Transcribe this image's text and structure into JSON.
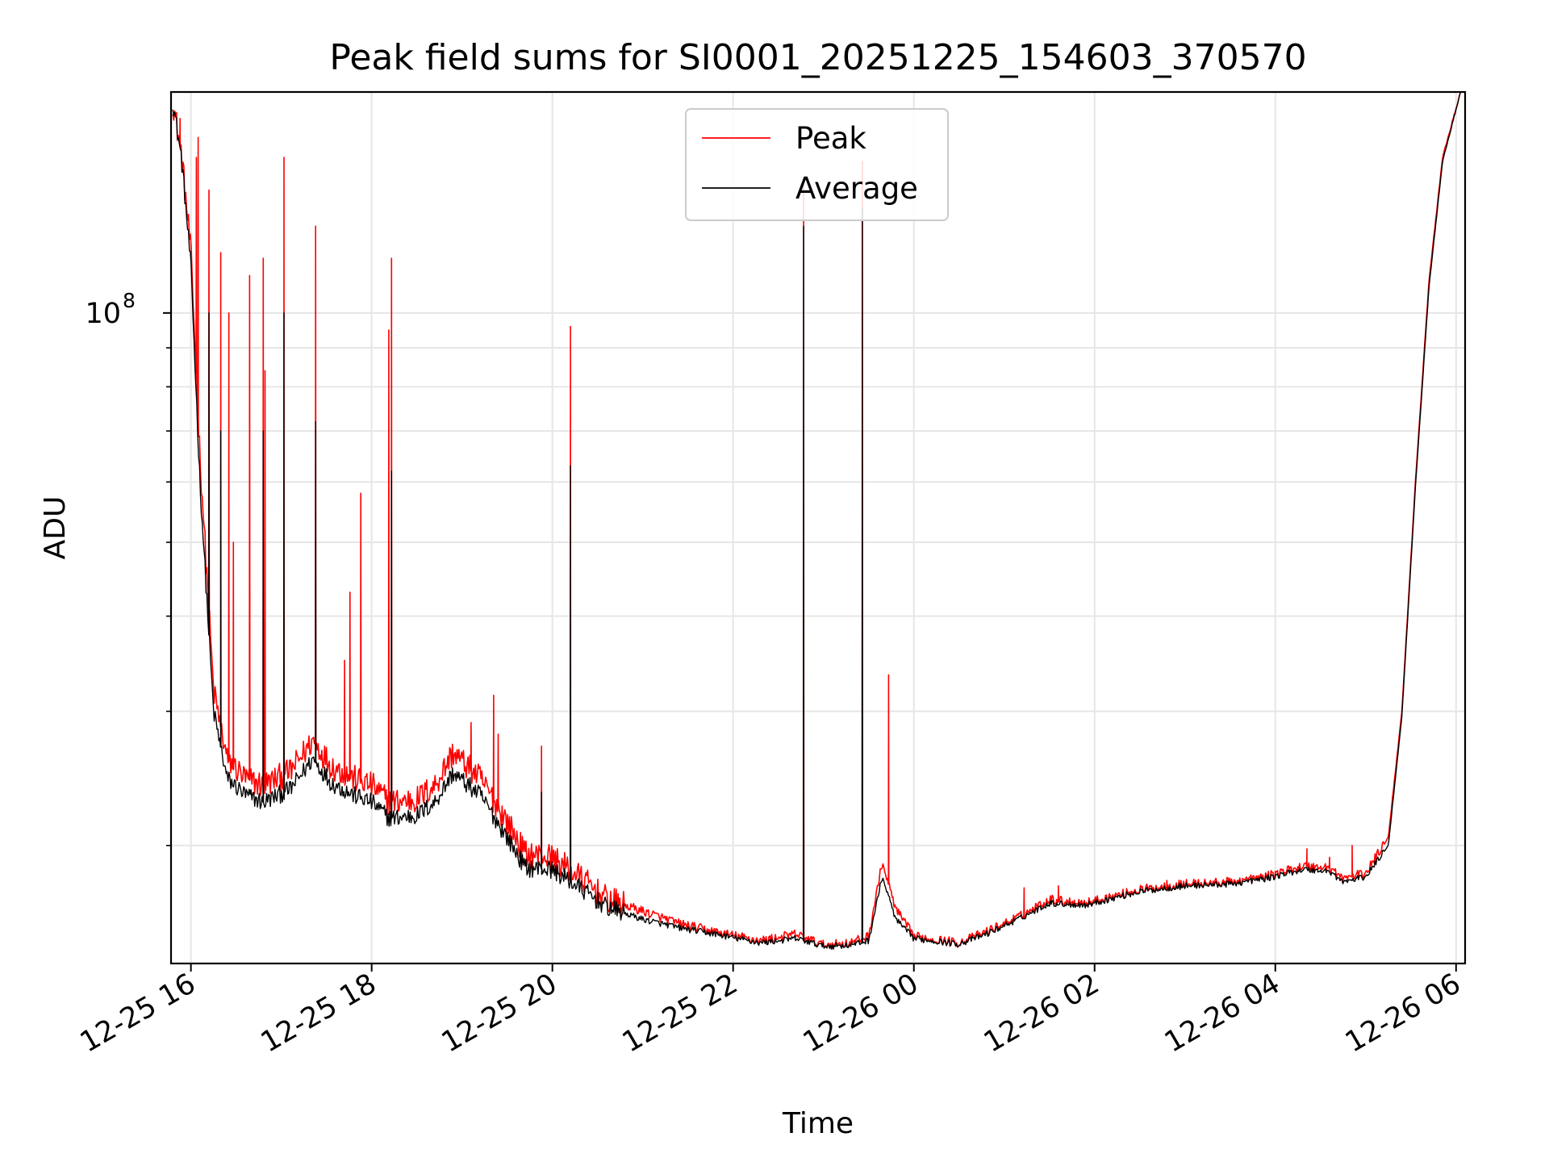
{
  "chart_data": {
    "type": "line",
    "title": "Peak field sums for SI0001_20251225_154603_370570",
    "xlabel": "Time",
    "ylabel": "ADU",
    "yscale": "log",
    "ylim": [
      14000000,
      195000000
    ],
    "xlim_hours": [
      15.78,
      30.1
    ],
    "grid": true,
    "legend_position": "top-center",
    "x_ticks": [
      {
        "hour": 16,
        "label": "12-25 16"
      },
      {
        "hour": 18,
        "label": "12-25 18"
      },
      {
        "hour": 20,
        "label": "12-25 20"
      },
      {
        "hour": 22,
        "label": "12-25 22"
      },
      {
        "hour": 24,
        "label": "12-26 00"
      },
      {
        "hour": 26,
        "label": "12-26 02"
      },
      {
        "hour": 28,
        "label": "12-26 04"
      },
      {
        "hour": 30,
        "label": "12-26 06"
      }
    ],
    "y_major_tick": {
      "value": 100000000,
      "base": "10",
      "exp": "8"
    },
    "y_minor_ticks": [
      20000000,
      30000000,
      40000000,
      50000000,
      60000000,
      70000000,
      80000000,
      90000000,
      200000000
    ],
    "series": [
      {
        "name": "Peak",
        "color": "#ff0000",
        "baseline": [
          [
            15.8,
            190000000
          ],
          [
            15.9,
            160000000
          ],
          [
            16.0,
            120000000
          ],
          [
            16.1,
            65000000
          ],
          [
            16.25,
            32000000
          ],
          [
            16.4,
            26000000
          ],
          [
            16.6,
            24500000
          ],
          [
            16.8,
            24000000
          ],
          [
            17.1,
            25000000
          ],
          [
            17.35,
            27500000
          ],
          [
            17.55,
            25500000
          ],
          [
            17.8,
            24500000
          ],
          [
            18.0,
            24000000
          ],
          [
            18.2,
            22800000
          ],
          [
            18.5,
            23000000
          ],
          [
            18.7,
            24000000
          ],
          [
            18.9,
            26500000
          ],
          [
            19.2,
            24500000
          ],
          [
            19.5,
            21500000
          ],
          [
            19.7,
            19500000
          ],
          [
            20.0,
            19300000
          ],
          [
            20.3,
            18200000
          ],
          [
            20.6,
            17000000
          ],
          [
            21.0,
            16400000
          ],
          [
            21.4,
            15800000
          ],
          [
            21.8,
            15400000
          ],
          [
            22.3,
            15000000
          ],
          [
            22.7,
            15300000
          ],
          [
            23.0,
            14800000
          ],
          [
            23.3,
            14900000
          ],
          [
            23.5,
            15200000
          ],
          [
            23.65,
            19000000
          ],
          [
            23.8,
            16500000
          ],
          [
            24.0,
            15200000
          ],
          [
            24.5,
            14900000
          ],
          [
            24.8,
            15400000
          ],
          [
            25.2,
            16200000
          ],
          [
            25.5,
            17000000
          ],
          [
            25.9,
            16800000
          ],
          [
            26.5,
            17500000
          ],
          [
            27.0,
            17800000
          ],
          [
            27.5,
            17900000
          ],
          [
            27.9,
            18200000
          ],
          [
            28.3,
            18800000
          ],
          [
            28.6,
            18700000
          ],
          [
            28.75,
            18100000
          ],
          [
            29.0,
            18400000
          ],
          [
            29.25,
            20500000
          ],
          [
            29.4,
            30000000
          ],
          [
            29.55,
            60000000
          ],
          [
            29.7,
            110000000
          ],
          [
            29.85,
            160000000
          ],
          [
            30.05,
            195000000
          ]
        ],
        "spikes": [
          [
            15.88,
            180000000
          ],
          [
            16.06,
            160000000
          ],
          [
            16.08,
            170000000
          ],
          [
            16.2,
            145000000
          ],
          [
            16.33,
            120000000
          ],
          [
            16.42,
            100000000
          ],
          [
            16.47,
            50000000
          ],
          [
            16.65,
            112000000
          ],
          [
            16.8,
            118000000
          ],
          [
            16.82,
            84000000
          ],
          [
            17.03,
            160000000
          ],
          [
            17.38,
            130000000
          ],
          [
            17.7,
            35000000
          ],
          [
            17.76,
            43000000
          ],
          [
            17.88,
            58000000
          ],
          [
            18.19,
            95000000
          ],
          [
            18.22,
            118000000
          ],
          [
            19.1,
            29000000
          ],
          [
            19.35,
            31500000
          ],
          [
            19.4,
            28000000
          ],
          [
            19.88,
            27000000
          ],
          [
            20.2,
            96000000
          ],
          [
            22.78,
            150000000
          ],
          [
            23.43,
            158000000
          ],
          [
            23.72,
            33500000
          ],
          [
            25.22,
            17600000
          ],
          [
            25.6,
            17700000
          ],
          [
            26.8,
            18000000
          ],
          [
            28.0,
            18500000
          ],
          [
            28.35,
            19800000
          ],
          [
            28.6,
            19300000
          ],
          [
            28.85,
            20000000
          ]
        ]
      },
      {
        "name": "Average",
        "color": "#000000",
        "baseline": [
          [
            15.8,
            190000000
          ],
          [
            15.9,
            158000000
          ],
          [
            16.0,
            115000000
          ],
          [
            16.1,
            60000000
          ],
          [
            16.25,
            30000000
          ],
          [
            16.4,
            24500000
          ],
          [
            16.6,
            23300000
          ],
          [
            16.8,
            22800000
          ],
          [
            17.1,
            23700000
          ],
          [
            17.35,
            26000000
          ],
          [
            17.55,
            24200000
          ],
          [
            17.8,
            23300000
          ],
          [
            18.0,
            22800000
          ],
          [
            18.2,
            21700000
          ],
          [
            18.5,
            21900000
          ],
          [
            18.7,
            22800000
          ],
          [
            18.9,
            24900000
          ],
          [
            19.2,
            23300000
          ],
          [
            19.5,
            20500000
          ],
          [
            19.7,
            18700000
          ],
          [
            20.0,
            18600000
          ],
          [
            20.3,
            17600000
          ],
          [
            20.6,
            16600000
          ],
          [
            21.0,
            16000000
          ],
          [
            21.4,
            15600000
          ],
          [
            21.8,
            15300000
          ],
          [
            22.3,
            14900000
          ],
          [
            22.7,
            15100000
          ],
          [
            23.0,
            14750000
          ],
          [
            23.3,
            14800000
          ],
          [
            23.5,
            15000000
          ],
          [
            23.65,
            18200000
          ],
          [
            23.8,
            16000000
          ],
          [
            24.0,
            15100000
          ],
          [
            24.5,
            14850000
          ],
          [
            24.8,
            15300000
          ],
          [
            25.2,
            16100000
          ],
          [
            25.5,
            16800000
          ],
          [
            25.9,
            16700000
          ],
          [
            26.5,
            17400000
          ],
          [
            27.0,
            17700000
          ],
          [
            27.5,
            17800000
          ],
          [
            27.9,
            18100000
          ],
          [
            28.3,
            18600000
          ],
          [
            28.6,
            18500000
          ],
          [
            28.75,
            17900000
          ],
          [
            29.0,
            18200000
          ],
          [
            29.25,
            20000000
          ],
          [
            29.4,
            29500000
          ],
          [
            29.55,
            59000000
          ],
          [
            29.7,
            108000000
          ],
          [
            29.85,
            158000000
          ],
          [
            30.05,
            195000000
          ]
        ],
        "spikes": [
          [
            16.2,
            100000000
          ],
          [
            16.33,
            70000000
          ],
          [
            16.8,
            70000000
          ],
          [
            17.03,
            100000000
          ],
          [
            17.38,
            72000000
          ],
          [
            18.22,
            62000000
          ],
          [
            19.88,
            23500000
          ],
          [
            20.2,
            63000000
          ],
          [
            22.78,
            130000000
          ],
          [
            23.43,
            137000000
          ]
        ]
      }
    ]
  }
}
